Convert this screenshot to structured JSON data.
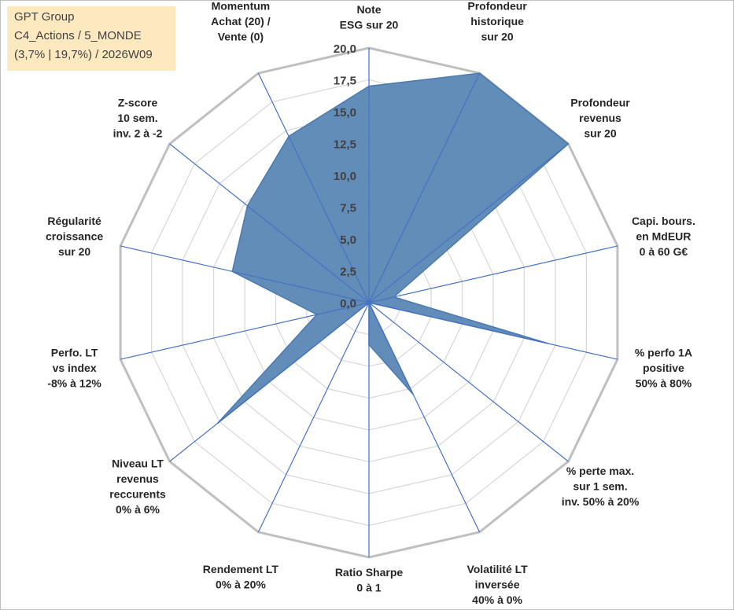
{
  "header": {
    "lines": [
      "GPT Group",
      "C4_Actions / 5_MONDE",
      "(3,7% | 19,7%) / 2026W09"
    ]
  },
  "colors": {
    "fill": "#5b87b5",
    "stroke": "#4a79ad",
    "spoke": "#4472c4",
    "ring": "#bfbfbf",
    "grid": "#d9d9d9",
    "legend_bg": "#fde9c0"
  },
  "chart_data": {
    "type": "radar",
    "title": "",
    "range": [
      0,
      20
    ],
    "ticks": [
      "0,0",
      "2,5",
      "5,0",
      "7,5",
      "10,0",
      "12,5",
      "15,0",
      "17,5",
      "20,0"
    ],
    "axes": [
      {
        "label": [
          "Note",
          "ESG sur 20"
        ]
      },
      {
        "label": [
          "Profondeur",
          "historique",
          "sur 20"
        ]
      },
      {
        "label": [
          "Profondeur",
          "revenus",
          "sur 20"
        ]
      },
      {
        "label": [
          "Capi. bours.",
          "en MdEUR",
          "0 à 60 G€"
        ]
      },
      {
        "label": [
          "% perfo 1A",
          "positive",
          "50% à 80%"
        ]
      },
      {
        "label": [
          "% perte max.",
          "sur 1 sem.",
          "inv. 50% à 20%"
        ]
      },
      {
        "label": [
          "Volatilité LT",
          "inversée",
          "40% à 0%"
        ]
      },
      {
        "label": [
          "Ratio Sharpe",
          "0 à 1"
        ]
      },
      {
        "label": [
          "Rendement LT",
          "0% à 20%"
        ]
      },
      {
        "label": [
          "Niveau LT",
          "revenus",
          "reccurents",
          "0% à 6%"
        ]
      },
      {
        "label": [
          "Perfo. LT",
          "vs index",
          "-8% à 12%"
        ]
      },
      {
        "label": [
          "Régularité",
          "croissance",
          "sur 20"
        ]
      },
      {
        "label": [
          "Z-score",
          "10 sem.",
          "inv. 2 à -2"
        ]
      },
      {
        "label": [
          "Momentum",
          "Achat (20) /",
          "Vente (0)"
        ]
      }
    ],
    "series": [
      {
        "name": "GPT Group",
        "values": [
          17.0,
          20.0,
          20.0,
          2.0,
          14.5,
          0.0,
          8.0,
          3.3,
          0.0,
          15.2,
          4.2,
          11.0,
          12.2,
          14.5
        ]
      }
    ]
  }
}
